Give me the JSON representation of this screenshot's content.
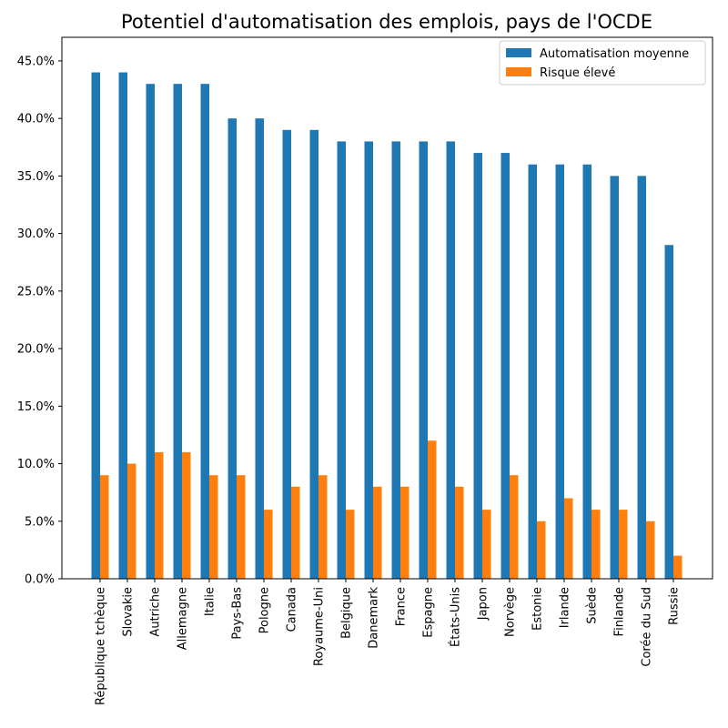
{
  "chart_data": {
    "type": "bar",
    "title": "Potentiel d'automatisation des emplois, pays de l'OCDE",
    "xlabel": "",
    "ylabel": "",
    "ylim": [
      0,
      45
    ],
    "y_ticks": [
      "0.0%",
      "5.0%",
      "10.0%",
      "15.0%",
      "20.0%",
      "25.0%",
      "30.0%",
      "35.0%",
      "40.0%",
      "45.0%"
    ],
    "y_tick_values": [
      0,
      5,
      10,
      15,
      20,
      25,
      30,
      35,
      40,
      45
    ],
    "grid": false,
    "legend_position": "top-right",
    "categories": [
      "République tchèque",
      "Slovakie",
      "Autriche",
      "Allemagne",
      "Italie",
      "Pays-Bas",
      "Pologne",
      "Canada",
      "Royaume-Uni",
      "Belgique",
      "Danemark",
      "France",
      "Espagne",
      "États-Unis",
      "Japon",
      "Norvège",
      "Estonie",
      "Irlande",
      "Suède",
      "Finlande",
      "Corée du Sud",
      "Russie"
    ],
    "series": [
      {
        "name": "Automatisation moyenne",
        "color": "#1f77b4",
        "values": [
          44,
          44,
          43,
          43,
          43,
          40,
          40,
          39,
          39,
          38,
          38,
          38,
          38,
          38,
          37,
          37,
          36,
          36,
          36,
          35,
          35,
          29
        ]
      },
      {
        "name": "Risque élevé",
        "color": "#ff7f0e",
        "values": [
          9,
          10,
          11,
          11,
          9,
          9,
          6,
          8,
          9,
          6,
          8,
          8,
          12,
          8,
          6,
          9,
          5,
          7,
          6,
          6,
          5,
          2
        ]
      }
    ]
  }
}
